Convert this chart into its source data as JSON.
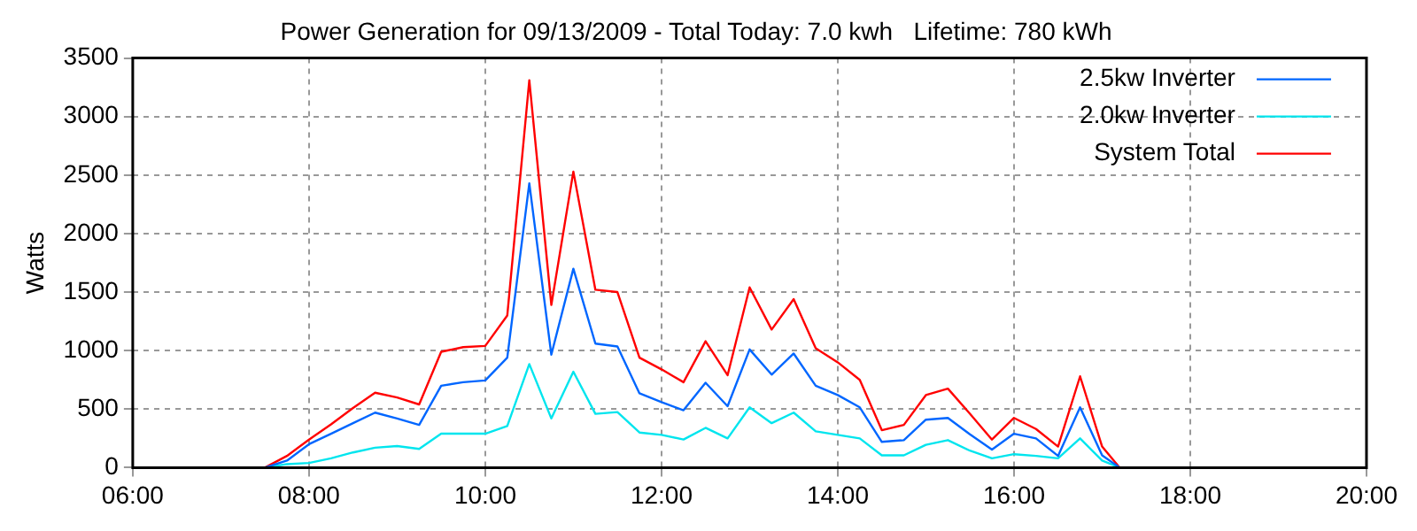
{
  "chart_data": {
    "type": "line",
    "title": "Power Generation for 09/13/2009 - Total Today: 7.0 kwh   Lifetime: 780 kWh",
    "ylabel": "Watts",
    "x": [
      7.5,
      7.75,
      8,
      8.25,
      8.5,
      8.75,
      9,
      9.25,
      9.5,
      9.75,
      10,
      10.25,
      10.5,
      10.75,
      11,
      11.25,
      11.5,
      11.75,
      12,
      12.25,
      12.5,
      12.75,
      13,
      13.25,
      13.5,
      13.75,
      14,
      14.25,
      14.5,
      14.75,
      15,
      15.25,
      15.5,
      15.75,
      16,
      16.25,
      16.5,
      16.75,
      17,
      17.2
    ],
    "series": [
      {
        "name": "2.5kw Inverter",
        "color": "#0066ff",
        "values": [
          0,
          60,
          200,
          290,
          380,
          470,
          420,
          365,
          700,
          730,
          745,
          940,
          2430,
          965,
          1700,
          1060,
          1035,
          635,
          560,
          490,
          725,
          525,
          1010,
          795,
          975,
          700,
          620,
          515,
          220,
          235,
          410,
          425,
          285,
          155,
          290,
          250,
          100,
          515,
          105,
          0
        ]
      },
      {
        "name": "2.0kw Inverter",
        "color": "#00e5ee",
        "values": [
          0,
          30,
          40,
          80,
          130,
          170,
          185,
          160,
          290,
          290,
          290,
          355,
          885,
          420,
          820,
          460,
          475,
          300,
          280,
          240,
          340,
          250,
          515,
          380,
          470,
          310,
          280,
          250,
          105,
          105,
          195,
          235,
          145,
          80,
          115,
          100,
          80,
          250,
          60,
          0
        ]
      },
      {
        "name": "System Total",
        "color": "#ff0000",
        "values": [
          0,
          100,
          240,
          370,
          510,
          640,
          600,
          540,
          990,
          1030,
          1040,
          1300,
          3310,
          1390,
          2530,
          1520,
          1500,
          940,
          840,
          730,
          1080,
          790,
          1540,
          1180,
          1440,
          1020,
          900,
          750,
          320,
          365,
          620,
          675,
          460,
          240,
          425,
          330,
          180,
          780,
          180,
          0
        ]
      }
    ],
    "xlim": [
      6,
      20
    ],
    "xticks": [
      {
        "value": 6,
        "label": "06:00"
      },
      {
        "value": 8,
        "label": "08:00"
      },
      {
        "value": 10,
        "label": "10:00"
      },
      {
        "value": 12,
        "label": "12:00"
      },
      {
        "value": 14,
        "label": "14:00"
      },
      {
        "value": 16,
        "label": "16:00"
      },
      {
        "value": 18,
        "label": "18:00"
      },
      {
        "value": 20,
        "label": "20:00"
      }
    ],
    "ylim": [
      0,
      3500
    ],
    "yticks": [
      0,
      500,
      1000,
      1500,
      2000,
      2500,
      3000,
      3500
    ],
    "grid": true,
    "legend": "top right",
    "marker": "none",
    "line_style": "solid"
  }
}
